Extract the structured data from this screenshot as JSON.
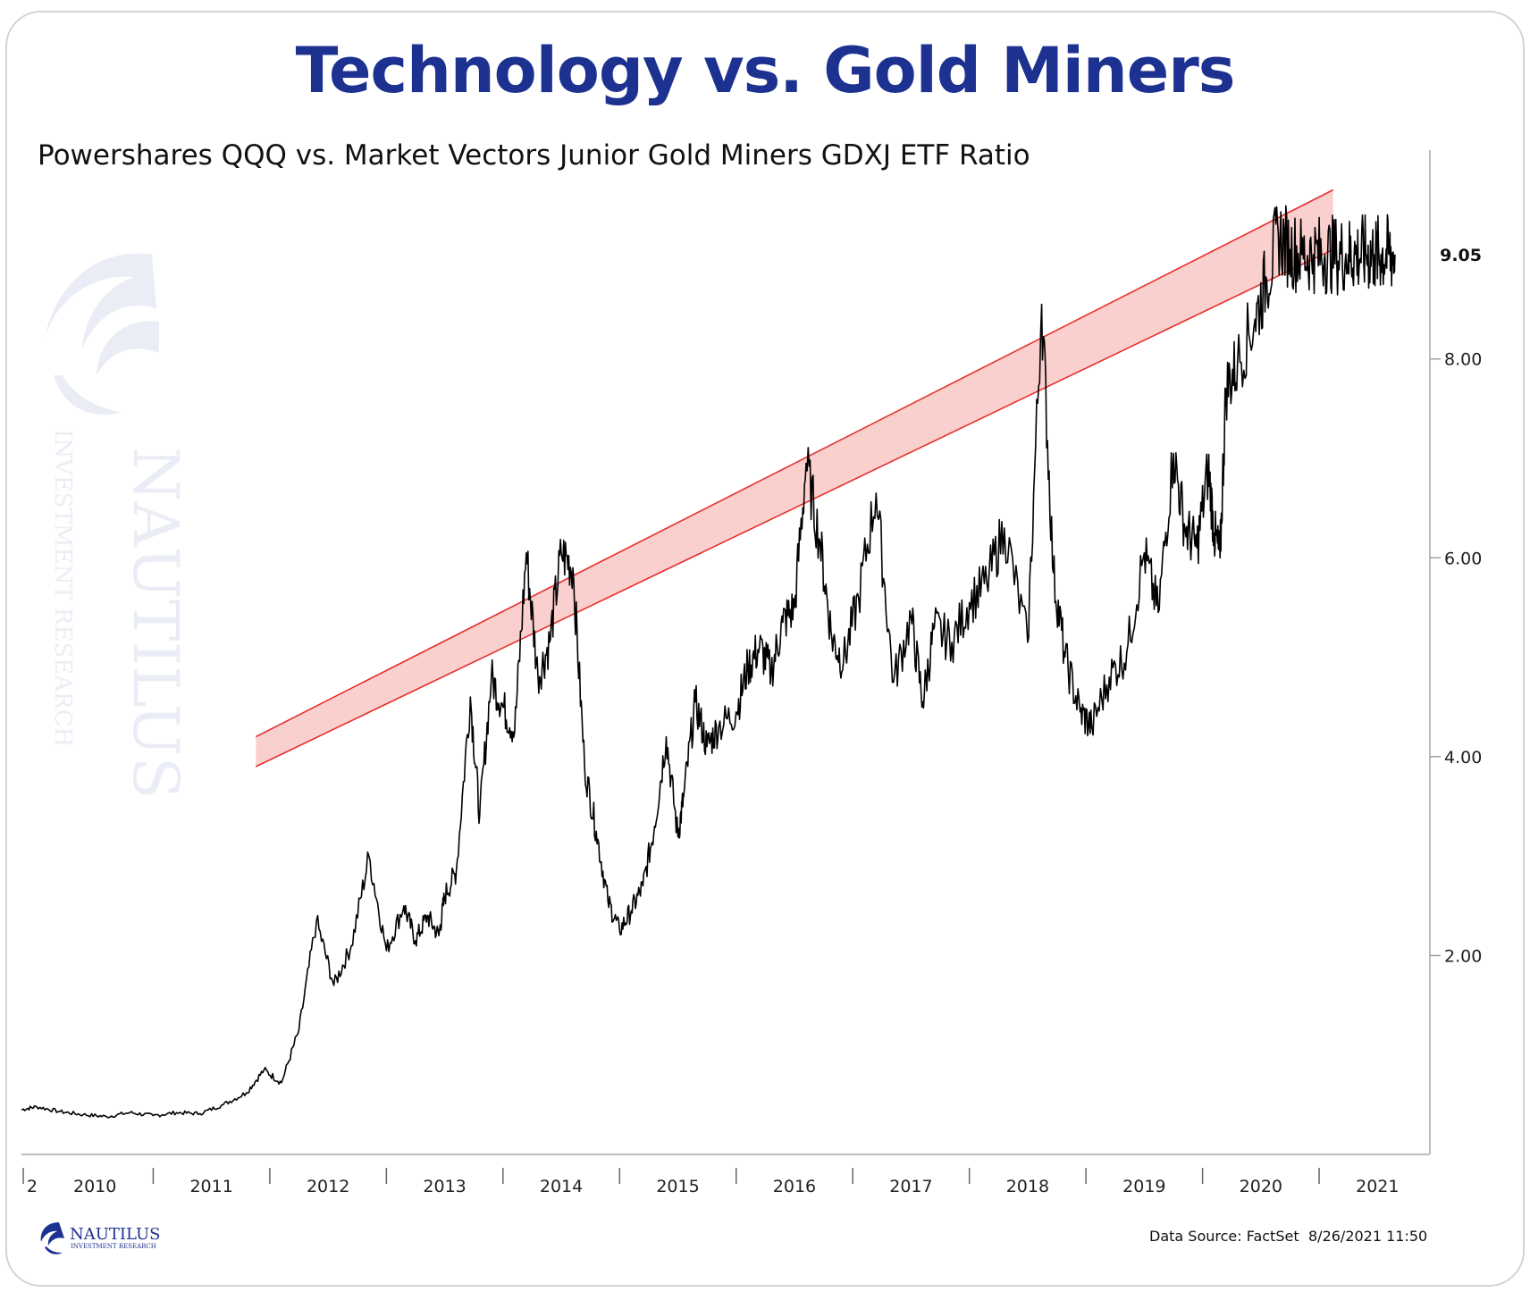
{
  "chart_data": {
    "type": "line",
    "title": "Technology vs. Gold Miners",
    "subtitle": "Powershares QQQ vs. Market Vectors Junior Gold Miners GDXJ ETF Ratio",
    "ylim": [
      0.0,
      10.1
    ],
    "xlim": [
      2009.87,
      2021.95
    ],
    "y_ticks": [
      "2.00",
      "4.00",
      "6.00",
      "8.00"
    ],
    "y_tick_values": [
      2.0,
      4.0,
      6.0,
      8.0
    ],
    "x_ticks": [
      "2",
      "2010",
      "2011",
      "2012",
      "2013",
      "2014",
      "2015",
      "2016",
      "2017",
      "2018",
      "2019",
      "2020",
      "2021"
    ],
    "x_tick_values": [
      2009.9,
      2010.5,
      2011.5,
      2012.5,
      2013.5,
      2014.5,
      2015.5,
      2016.5,
      2017.5,
      2018.5,
      2019.5,
      2020.5,
      2021.5
    ],
    "last_value_label": "9.05",
    "last_value": 9.05,
    "series": [
      {
        "color": "#000000",
        "x": [
          2009.87,
          2010.0,
          2010.2,
          2010.4,
          2010.6,
          2010.8,
          2011.0,
          2011.2,
          2011.4,
          2011.6,
          2011.8,
          2011.95,
          2012.1,
          2012.25,
          2012.4,
          2012.55,
          2012.7,
          2012.85,
          2013.0,
          2013.15,
          2013.25,
          2013.35,
          2013.45,
          2013.5,
          2013.6,
          2013.72,
          2013.8,
          2013.9,
          2014.0,
          2014.1,
          2014.2,
          2014.3,
          2014.4,
          2014.5,
          2014.6,
          2014.7,
          2014.8,
          2014.9,
          2015.0,
          2015.1,
          2015.2,
          2015.3,
          2015.4,
          2015.5,
          2015.55,
          2015.65,
          2015.75,
          2015.85,
          2016.0,
          2016.1,
          2016.2,
          2016.3,
          2016.4,
          2016.5,
          2016.6,
          2016.72,
          2016.82,
          2016.92,
          2017.05,
          2017.2,
          2017.35,
          2017.5,
          2017.6,
          2017.7,
          2017.85,
          2018.0,
          2018.15,
          2018.3,
          2018.5,
          2018.62,
          2018.72,
          2018.82,
          2018.95,
          2019.05,
          2019.2,
          2019.35,
          2019.5,
          2019.62,
          2019.75,
          2019.85,
          2019.95,
          2020.05,
          2020.1,
          2020.15,
          2020.2,
          2020.3,
          2020.45,
          2020.55,
          2020.65,
          2020.75,
          2020.85,
          2020.95,
          2021.05,
          2021.15,
          2021.25,
          2021.32,
          2021.4,
          2021.47,
          2021.53,
          2021.6,
          2021.65
        ],
        "y": [
          0.45,
          0.48,
          0.43,
          0.4,
          0.38,
          0.42,
          0.39,
          0.42,
          0.41,
          0.5,
          0.62,
          0.85,
          0.72,
          1.25,
          2.35,
          1.7,
          2.1,
          3.0,
          2.05,
          2.5,
          2.15,
          2.4,
          2.2,
          2.6,
          2.85,
          4.6,
          3.4,
          4.8,
          4.5,
          4.25,
          6.05,
          4.8,
          5.15,
          6.05,
          5.9,
          3.9,
          3.25,
          2.55,
          2.25,
          2.45,
          2.7,
          3.3,
          4.2,
          3.2,
          3.6,
          4.55,
          4.1,
          4.3,
          4.45,
          4.9,
          5.1,
          4.85,
          5.35,
          5.5,
          6.95,
          6.15,
          5.2,
          4.95,
          5.6,
          6.65,
          4.75,
          5.4,
          4.55,
          5.3,
          5.15,
          5.55,
          5.75,
          6.3,
          5.15,
          8.55,
          5.85,
          5.0,
          4.45,
          4.3,
          4.8,
          5.05,
          6.05,
          5.45,
          7.05,
          6.3,
          6.1,
          6.9,
          6.25,
          6.0,
          7.7,
          7.95,
          8.4,
          8.8,
          9.25,
          9.1,
          9.05,
          9.05,
          9.05,
          9.05,
          9.05,
          9.05,
          9.05,
          9.05,
          9.05,
          9.05,
          9.05
        ],
        "note": "last value 9.05"
      }
    ],
    "resistance_band": {
      "color": "#e5302e",
      "fill": "#f9c8c6",
      "from_x": 2011.88,
      "to_x": 2021.12,
      "lower_start": 3.9,
      "lower_end": 9.1,
      "upper_start": 4.2,
      "upper_end": 9.7
    },
    "annotations": {
      "data_source": "Data Source: FactSet",
      "timestamp": "8/26/2021 11:50"
    }
  },
  "logo": {
    "name": "NAUTILUS",
    "tagline": "INVESTMENT RESEARCH"
  }
}
